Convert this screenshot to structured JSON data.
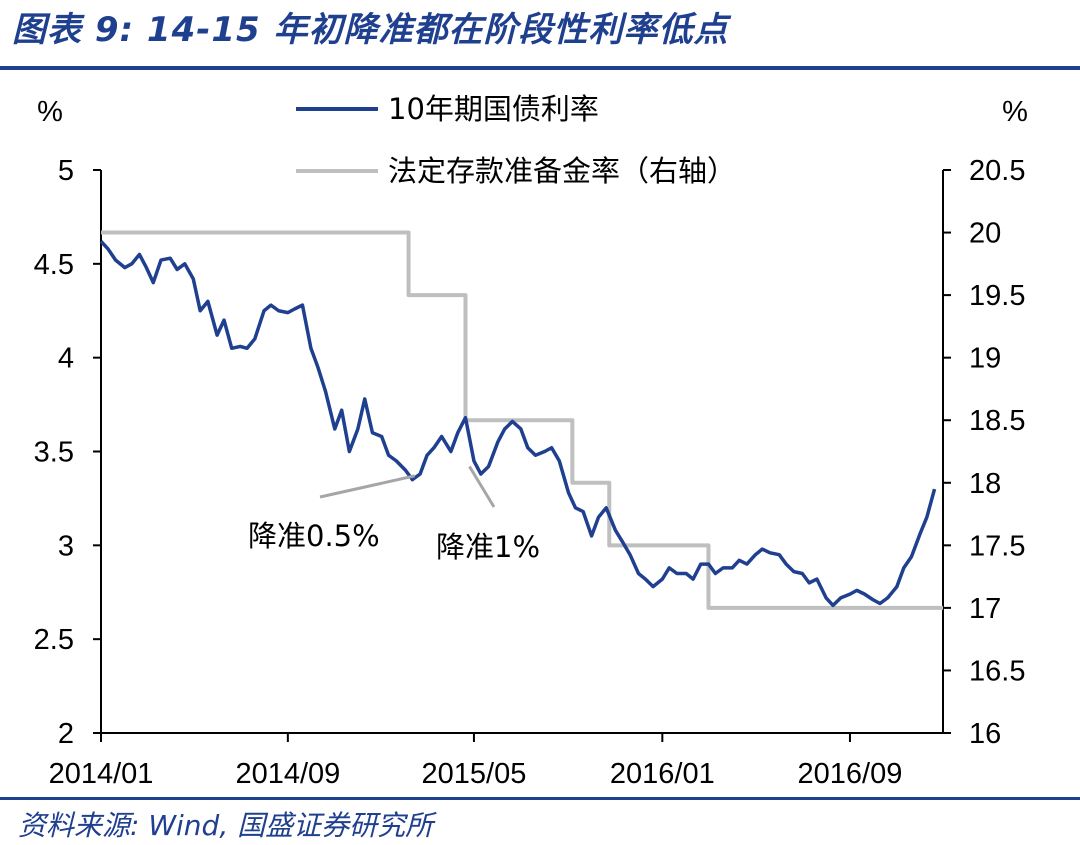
{
  "header": {
    "title": "图表 9:  14-15 年初降准都在阶段性利率低点"
  },
  "footer": {
    "source": "资料来源:  Wind, 国盛证券研究所"
  },
  "chart_data": {
    "type": "line",
    "title": "图表 9:  14-15 年初降准都在阶段性利率低点",
    "x_range": [
      "2014-01-01",
      "2016-12-31"
    ],
    "x_ticks": [
      "2014/01",
      "2014/09",
      "2015/05",
      "2016/01",
      "2016/09"
    ],
    "x_tick_dates": [
      "2014-01-01",
      "2014-09-01",
      "2015-05-01",
      "2016-01-01",
      "2016-09-01"
    ],
    "y_left": {
      "label": "%",
      "range": [
        2,
        5
      ],
      "ticks": [
        "2",
        "2.5",
        "3",
        "3.5",
        "4",
        "4.5",
        "5"
      ]
    },
    "y_right": {
      "label": "%",
      "range": [
        16,
        20.5
      ],
      "ticks": [
        "16",
        "16.5",
        "17",
        "17.5",
        "18",
        "18.5",
        "19",
        "19.5",
        "20",
        "20.5"
      ]
    },
    "legend_position": "top-center",
    "grid": false,
    "series": [
      {
        "name": "10年期国债利率",
        "axis": "left",
        "color": "#1f3f8f",
        "points": [
          [
            "2014-01-01",
            4.62
          ],
          [
            "2014-01-10",
            4.58
          ],
          [
            "2014-01-20",
            4.52
          ],
          [
            "2014-02-01",
            4.48
          ],
          [
            "2014-02-10",
            4.5
          ],
          [
            "2014-02-20",
            4.55
          ],
          [
            "2014-03-01",
            4.48
          ],
          [
            "2014-03-10",
            4.4
          ],
          [
            "2014-03-20",
            4.52
          ],
          [
            "2014-04-01",
            4.53
          ],
          [
            "2014-04-10",
            4.47
          ],
          [
            "2014-04-20",
            4.5
          ],
          [
            "2014-05-01",
            4.42
          ],
          [
            "2014-05-10",
            4.25
          ],
          [
            "2014-05-20",
            4.3
          ],
          [
            "2014-06-01",
            4.12
          ],
          [
            "2014-06-10",
            4.2
          ],
          [
            "2014-06-20",
            4.05
          ],
          [
            "2014-07-01",
            4.06
          ],
          [
            "2014-07-10",
            4.05
          ],
          [
            "2014-07-20",
            4.1
          ],
          [
            "2014-08-01",
            4.25
          ],
          [
            "2014-08-10",
            4.28
          ],
          [
            "2014-08-20",
            4.25
          ],
          [
            "2014-09-01",
            4.24
          ],
          [
            "2014-09-10",
            4.26
          ],
          [
            "2014-09-20",
            4.28
          ],
          [
            "2014-10-01",
            4.05
          ],
          [
            "2014-10-10",
            3.95
          ],
          [
            "2014-10-20",
            3.82
          ],
          [
            "2014-11-01",
            3.62
          ],
          [
            "2014-11-10",
            3.72
          ],
          [
            "2014-11-20",
            3.5
          ],
          [
            "2014-12-01",
            3.62
          ],
          [
            "2014-12-10",
            3.78
          ],
          [
            "2014-12-20",
            3.6
          ],
          [
            "2015-01-01",
            3.58
          ],
          [
            "2015-01-10",
            3.48
          ],
          [
            "2015-01-20",
            3.45
          ],
          [
            "2015-02-01",
            3.4
          ],
          [
            "2015-02-10",
            3.35
          ],
          [
            "2015-02-20",
            3.38
          ],
          [
            "2015-03-01",
            3.48
          ],
          [
            "2015-03-10",
            3.52
          ],
          [
            "2015-03-20",
            3.58
          ],
          [
            "2015-04-01",
            3.5
          ],
          [
            "2015-04-10",
            3.6
          ],
          [
            "2015-04-20",
            3.68
          ],
          [
            "2015-05-01",
            3.45
          ],
          [
            "2015-05-10",
            3.38
          ],
          [
            "2015-05-20",
            3.42
          ],
          [
            "2015-06-01",
            3.55
          ],
          [
            "2015-06-10",
            3.62
          ],
          [
            "2015-06-20",
            3.66
          ],
          [
            "2015-07-01",
            3.62
          ],
          [
            "2015-07-10",
            3.52
          ],
          [
            "2015-07-20",
            3.48
          ],
          [
            "2015-08-01",
            3.5
          ],
          [
            "2015-08-10",
            3.52
          ],
          [
            "2015-08-20",
            3.45
          ],
          [
            "2015-09-01",
            3.28
          ],
          [
            "2015-09-10",
            3.2
          ],
          [
            "2015-09-20",
            3.18
          ],
          [
            "2015-10-01",
            3.05
          ],
          [
            "2015-10-10",
            3.15
          ],
          [
            "2015-10-20",
            3.2
          ],
          [
            "2015-11-01",
            3.08
          ],
          [
            "2015-11-10",
            3.02
          ],
          [
            "2015-11-20",
            2.95
          ],
          [
            "2015-12-01",
            2.85
          ],
          [
            "2015-12-10",
            2.82
          ],
          [
            "2015-12-20",
            2.78
          ],
          [
            "2016-01-01",
            2.82
          ],
          [
            "2016-01-10",
            2.88
          ],
          [
            "2016-01-20",
            2.85
          ],
          [
            "2016-02-01",
            2.85
          ],
          [
            "2016-02-10",
            2.82
          ],
          [
            "2016-02-20",
            2.9
          ],
          [
            "2016-03-01",
            2.9
          ],
          [
            "2016-03-10",
            2.85
          ],
          [
            "2016-03-20",
            2.88
          ],
          [
            "2016-04-01",
            2.88
          ],
          [
            "2016-04-10",
            2.92
          ],
          [
            "2016-04-20",
            2.9
          ],
          [
            "2016-05-01",
            2.95
          ],
          [
            "2016-05-10",
            2.98
          ],
          [
            "2016-05-20",
            2.96
          ],
          [
            "2016-06-01",
            2.95
          ],
          [
            "2016-06-10",
            2.9
          ],
          [
            "2016-06-20",
            2.86
          ],
          [
            "2016-07-01",
            2.85
          ],
          [
            "2016-07-10",
            2.8
          ],
          [
            "2016-07-20",
            2.82
          ],
          [
            "2016-08-01",
            2.72
          ],
          [
            "2016-08-10",
            2.68
          ],
          [
            "2016-08-20",
            2.72
          ],
          [
            "2016-09-01",
            2.74
          ],
          [
            "2016-09-10",
            2.76
          ],
          [
            "2016-09-20",
            2.74
          ],
          [
            "2016-10-01",
            2.71
          ],
          [
            "2016-10-10",
            2.69
          ],
          [
            "2016-10-20",
            2.72
          ],
          [
            "2016-11-01",
            2.78
          ],
          [
            "2016-11-10",
            2.88
          ],
          [
            "2016-11-20",
            2.94
          ],
          [
            "2016-12-01",
            3.06
          ],
          [
            "2016-12-10",
            3.15
          ],
          [
            "2016-12-20",
            3.3
          ]
        ]
      },
      {
        "name": "法定存款准备金率（右轴）",
        "axis": "right",
        "color": "#bfbfbf",
        "step": true,
        "points": [
          [
            "2014-01-01",
            20.0
          ],
          [
            "2015-02-05",
            19.5
          ],
          [
            "2015-04-20",
            18.5
          ],
          [
            "2015-09-06",
            18.0
          ],
          [
            "2015-10-24",
            17.5
          ],
          [
            "2016-03-01",
            17.0
          ],
          [
            "2016-12-31",
            17.0
          ]
        ]
      }
    ],
    "annotations": [
      {
        "text": "降准0.5%",
        "date": "2015-02-05"
      },
      {
        "text": "降准1%",
        "date": "2015-04-20"
      }
    ]
  }
}
